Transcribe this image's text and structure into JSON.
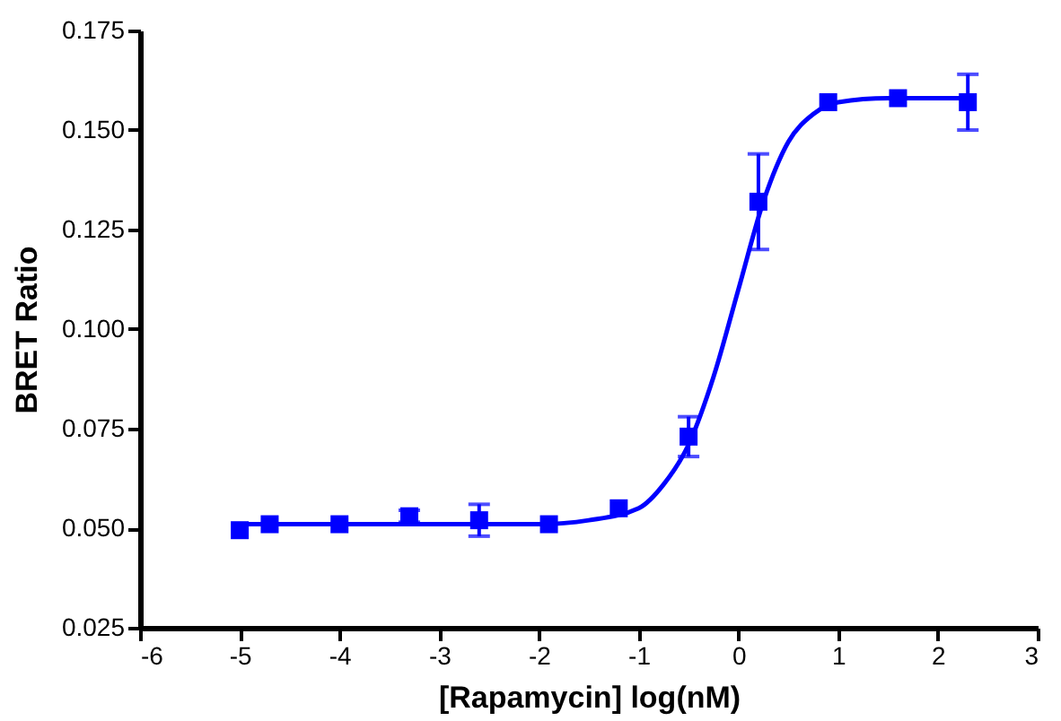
{
  "chart_data": {
    "type": "scatter",
    "xlabel": "[Rapamycin] log(nM)",
    "ylabel": "BRET Ratio",
    "xlim": [
      -6,
      3
    ],
    "xticks": [
      -6,
      -5,
      -4,
      -3,
      -2,
      -1,
      0,
      1,
      2,
      3
    ],
    "ylim": [
      0.025,
      0.175
    ],
    "yticks": [
      {
        "value": 0.025,
        "label": "0.025"
      },
      {
        "value": 0.05,
        "label": "0.050"
      },
      {
        "value": 0.075,
        "label": "0.075"
      },
      {
        "value": 0.1,
        "label": "0.100"
      },
      {
        "value": 0.125,
        "label": "0.125"
      },
      {
        "value": 0.15,
        "label": "0.150"
      },
      {
        "value": 0.175,
        "label": "0.175"
      }
    ],
    "grid": false,
    "series": [
      {
        "color": "#0000ff",
        "marker": "square",
        "x": [
          -5,
          -4.7,
          -4,
          -3.3,
          -2.6,
          -1.9,
          -1.2,
          -0.5,
          0.2,
          0.9,
          1.6,
          2.3
        ],
        "values": [
          0.0495,
          0.051,
          0.051,
          0.053,
          0.052,
          0.051,
          0.055,
          0.073,
          0.132,
          0.157,
          0.158,
          0.157
        ],
        "errors": [
          null,
          null,
          null,
          0.0015,
          0.004,
          null,
          null,
          0.005,
          0.012,
          null,
          null,
          0.007
        ]
      },
      {
        "type": "line",
        "color": "#0000ff",
        "marker": "none",
        "line_style": "solid",
        "x": [
          -5,
          -2,
          -1.5,
          -1,
          -0.75,
          -0.5,
          -0.25,
          0,
          0.25,
          0.5,
          0.75,
          1,
          1.5,
          2.3
        ],
        "values": [
          0.051,
          0.051,
          0.052,
          0.055,
          0.061,
          0.071,
          0.088,
          0.11,
          0.132,
          0.147,
          0.154,
          0.157,
          0.158,
          0.158
        ]
      }
    ]
  }
}
